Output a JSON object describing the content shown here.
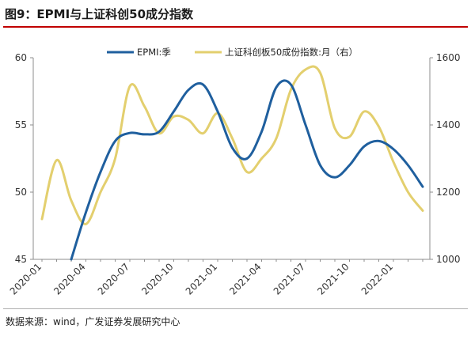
{
  "title": "图9：EPMI与上证科创50成分指数",
  "source": "数据来源：wind，广发证券发展研究中心",
  "colors": {
    "epmi": "#1f5f9e",
    "kc50": "#e3cf6e",
    "axis": "#8c8c8c",
    "rule": "#c00000"
  },
  "chart_data": {
    "type": "line",
    "legend_position": "top",
    "grid": false,
    "x": [
      "2020-01",
      "2020-02",
      "2020-03",
      "2020-04",
      "2020-05",
      "2020-06",
      "2020-07",
      "2020-08",
      "2020-09",
      "2020-10",
      "2020-11",
      "2020-12",
      "2021-01",
      "2021-02",
      "2021-03",
      "2021-04",
      "2021-05",
      "2021-06",
      "2021-07",
      "2021-08",
      "2021-09",
      "2021-10",
      "2021-11",
      "2021-12",
      "2022-01",
      "2022-02",
      "2022-03"
    ],
    "x_tick_labels": [
      "2020-01",
      "2020-04",
      "2020-07",
      "2020-10",
      "2021-01",
      "2021-04",
      "2021-07",
      "2021-10",
      "2022-01"
    ],
    "y_left": {
      "ylim": [
        45,
        60
      ],
      "ticks": [
        45,
        50,
        55,
        60
      ]
    },
    "y_right": {
      "ylim": [
        1000,
        1600
      ],
      "ticks": [
        1000,
        1200,
        1400,
        1600
      ]
    },
    "series": [
      {
        "name": "EPMI:季",
        "axis": "left",
        "values": [
          null,
          null,
          45.0,
          48.5,
          51.5,
          53.8,
          54.4,
          54.3,
          54.5,
          56.0,
          57.6,
          58.0,
          56.0,
          53.3,
          52.5,
          54.5,
          57.8,
          58.0,
          55.0,
          52.0,
          51.1,
          52.0,
          53.4,
          53.8,
          53.2,
          52.0,
          50.4
        ]
      },
      {
        "name": "上证科创板50成份指数:月（右）",
        "axis": "right",
        "values": [
          1120,
          1295,
          1175,
          1105,
          1200,
          1300,
          1515,
          1455,
          1375,
          1425,
          1415,
          1375,
          1435,
          1360,
          1260,
          1300,
          1360,
          1505,
          1565,
          1555,
          1390,
          1365,
          1440,
          1395,
          1290,
          1200,
          1145
        ]
      }
    ]
  }
}
